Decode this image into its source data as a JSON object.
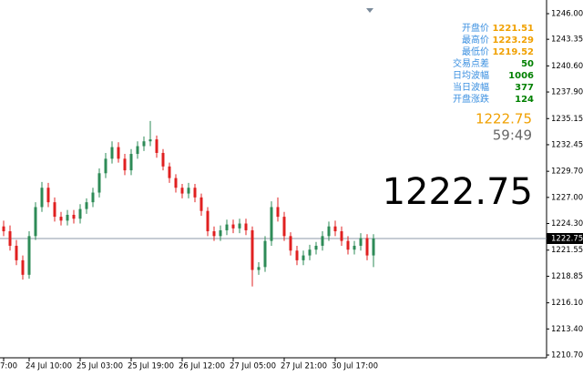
{
  "chart_data": {
    "type": "candlestick",
    "categories": [
      "7:00",
      null,
      null,
      null,
      "24 Jul 10:00",
      null,
      null,
      null,
      null,
      null,
      null,
      null,
      "25 Jul 03:00",
      null,
      null,
      null,
      null,
      null,
      null,
      null,
      "25 Jul 19:00",
      null,
      null,
      null,
      null,
      null,
      null,
      null,
      "26 Jul 12:00",
      null,
      null,
      null,
      null,
      null,
      null,
      null,
      "27 Jul 05:00",
      null,
      null,
      null,
      null,
      null,
      null,
      null,
      "27 Jul 21:00",
      null,
      null,
      null,
      null,
      null,
      null,
      null,
      "30 Jul 17:00",
      null,
      null,
      null,
      null,
      null,
      null
    ],
    "open": [
      1224.0,
      1223.5,
      1222.0,
      1220.5,
      1219.0,
      1223.0,
      1226.0,
      1228.0,
      1226.5,
      1225.0,
      1224.6,
      1225.2,
      1224.8,
      1225.8,
      1226.5,
      1227.5,
      1229.5,
      1231.0,
      1232.2,
      1231.0,
      1229.8,
      1231.5,
      1232.3,
      1232.8,
      1233.0,
      1231.6,
      1230.2,
      1229.0,
      1228.0,
      1227.4,
      1228.0,
      1227.0,
      1225.6,
      1223.5,
      1223.0,
      1223.6,
      1224.2,
      1223.8,
      1224.3,
      1223.6,
      1219.5,
      1219.8,
      1222.5,
      1226.0,
      1225.0,
      1223.0,
      1221.5,
      1220.5,
      1221.0,
      1221.6,
      1222.0,
      1223.0,
      1224.0,
      1223.5,
      1222.5,
      1221.6,
      1222.0,
      1222.8,
      1221.0
    ],
    "high": [
      1224.6,
      1224.1,
      1222.6,
      1221.0,
      1223.5,
      1226.5,
      1228.6,
      1228.5,
      1227.0,
      1225.5,
      1225.7,
      1225.7,
      1226.3,
      1226.9,
      1228.0,
      1230.0,
      1231.6,
      1232.8,
      1232.7,
      1231.5,
      1232.0,
      1232.8,
      1233.3,
      1234.9,
      1233.4,
      1232.0,
      1230.6,
      1229.4,
      1228.4,
      1228.5,
      1228.4,
      1227.4,
      1226.0,
      1224.0,
      1224.1,
      1224.7,
      1224.7,
      1224.8,
      1224.8,
      1224.0,
      1220.3,
      1223.0,
      1226.6,
      1227.0,
      1225.5,
      1223.4,
      1222.0,
      1221.5,
      1222.1,
      1222.4,
      1223.5,
      1224.5,
      1224.6,
      1224.0,
      1223.0,
      1222.5,
      1223.3,
      1223.2,
      1223.2
    ],
    "low": [
      1223.0,
      1221.5,
      1220.0,
      1218.5,
      1218.6,
      1222.6,
      1225.5,
      1226.0,
      1224.5,
      1224.1,
      1224.1,
      1224.3,
      1224.3,
      1225.3,
      1226.0,
      1227.0,
      1229.0,
      1230.5,
      1230.6,
      1229.3,
      1229.3,
      1231.0,
      1231.8,
      1232.3,
      1231.1,
      1229.8,
      1228.5,
      1227.5,
      1226.9,
      1226.9,
      1226.5,
      1225.1,
      1223.0,
      1222.5,
      1222.5,
      1223.1,
      1223.3,
      1223.3,
      1223.1,
      1217.8,
      1219.0,
      1219.3,
      1222.0,
      1224.5,
      1222.5,
      1221.0,
      1220.0,
      1220.0,
      1220.5,
      1221.1,
      1221.5,
      1222.5,
      1223.0,
      1222.0,
      1221.1,
      1221.1,
      1221.5,
      1220.5,
      1219.8
    ],
    "close": [
      1223.5,
      1222.0,
      1220.5,
      1219.0,
      1223.0,
      1226.0,
      1228.0,
      1226.5,
      1225.0,
      1224.6,
      1225.2,
      1224.8,
      1225.8,
      1226.5,
      1227.5,
      1229.5,
      1231.0,
      1232.2,
      1231.0,
      1229.8,
      1231.5,
      1232.3,
      1232.8,
      1233.0,
      1231.6,
      1230.2,
      1229.0,
      1228.0,
      1227.4,
      1228.0,
      1227.0,
      1225.6,
      1223.5,
      1223.0,
      1223.6,
      1224.2,
      1223.8,
      1224.3,
      1223.6,
      1219.5,
      1219.8,
      1222.5,
      1226.0,
      1225.0,
      1223.0,
      1221.5,
      1220.5,
      1221.0,
      1221.6,
      1222.0,
      1223.0,
      1224.0,
      1223.5,
      1222.5,
      1221.6,
      1222.0,
      1222.8,
      1221.0,
      1222.75
    ],
    "up_color": "#2e8b57",
    "down_color": "#e02020",
    "ylim": [
      1210.7,
      1246.0
    ],
    "yticks": [
      {
        "value": 1246.0,
        "label": "1246.00"
      },
      {
        "value": 1243.35,
        "label": "1243.35"
      },
      {
        "value": 1240.6,
        "label": "1240.60"
      },
      {
        "value": 1237.9,
        "label": "1237.90"
      },
      {
        "value": 1235.15,
        "label": "1235.15"
      },
      {
        "value": 1232.45,
        "label": "1232.45"
      },
      {
        "value": 1229.7,
        "label": "1229.70"
      },
      {
        "value": 1227.0,
        "label": "1227.00"
      },
      {
        "value": 1224.3,
        "label": "1224.30"
      },
      {
        "value": 1221.55,
        "label": "1221.55"
      },
      {
        "value": 1218.85,
        "label": "1218.85"
      },
      {
        "value": 1216.1,
        "label": "1216.10"
      },
      {
        "value": 1213.4,
        "label": "1213.40"
      },
      {
        "value": 1210.7,
        "label": "1210.70"
      }
    ],
    "last_price": 1222.75,
    "countdown": "59:49",
    "info_panel": [
      {
        "label": "开盘价",
        "value": 1221.51,
        "color": "#f0a000"
      },
      {
        "label": "最高价",
        "value": 1223.29,
        "color": "#f0a000"
      },
      {
        "label": "最低价",
        "value": 1219.52,
        "color": "#f0a000"
      },
      {
        "label": "交易点差",
        "value": 50,
        "color": "#008000"
      },
      {
        "label": "日均波幅",
        "value": 1006,
        "color": "#008000"
      },
      {
        "label": "当日波幅",
        "value": 377,
        "color": "#008000"
      },
      {
        "label": "开盘涨跌",
        "value": 124,
        "color": "#008000"
      }
    ]
  }
}
